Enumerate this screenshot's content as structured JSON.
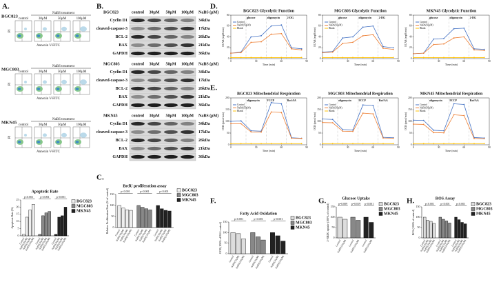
{
  "panels": {
    "A": {
      "label": "A.",
      "rows": [
        "BGC823",
        "MGC803",
        "MKN45"
      ],
      "treatment": "NaBS treatment",
      "doses": [
        "control",
        "30μM",
        "50μM",
        "100μM"
      ],
      "x_axis": "Annexin V-FITC",
      "y_axis": "PI",
      "chart": {
        "type": "bar",
        "title": "Apoptotic Rate",
        "ylabel": "Apoptosis Rate (%)",
        "categories": [
          "Control",
          "NaBS(30μM)",
          "NaBS(50μM)",
          "NaBS(100μM)"
        ],
        "series": [
          {
            "name": "BGC823",
            "color": "#eeeeee",
            "values": [
              1,
              13,
              18,
              22
            ]
          },
          {
            "name": "MGC803",
            "color": "#888888",
            "values": [
              1,
              14,
              16,
              17
            ]
          },
          {
            "name": "MKN45",
            "color": "#222222",
            "values": [
              1,
              13,
              14,
              20
            ]
          }
        ],
        "ylim": [
          0,
          25
        ],
        "yticks": [
          0,
          5,
          10,
          15,
          20,
          25
        ],
        "significance": [
          "p<0.001",
          "p<0.001",
          "p<0.001"
        ]
      }
    },
    "B": {
      "label": "B.",
      "blots": [
        {
          "cell": "BGC823",
          "doses": [
            "control",
            "30μM",
            "50μM",
            "100μM"
          ],
          "unit": "NaBS (μM)",
          "proteins": [
            {
              "name": "Cyclin D1",
              "kda": "34kDa"
            },
            {
              "name": "cleaved-caspase-3",
              "kda": "17kDa"
            },
            {
              "name": "BCL-2",
              "kda": "26kDa"
            },
            {
              "name": "BAX",
              "kda": "21kDa"
            },
            {
              "name": "GAPDH",
              "kda": "36kDa"
            }
          ]
        },
        {
          "cell": "MGC803",
          "doses": [
            "control",
            "30μM",
            "50μM",
            "100μM"
          ],
          "unit": "NaBS (μM)",
          "proteins": [
            {
              "name": "Cyclin D1",
              "kda": "34kDa"
            },
            {
              "name": "cleaved-caspase-3",
              "kda": "17kDa"
            },
            {
              "name": "BCL-2",
              "kda": "26kDa"
            },
            {
              "name": "BAX",
              "kda": "21kDa"
            },
            {
              "name": "GAPDH",
              "kda": "36kDa"
            }
          ]
        },
        {
          "cell": "MKN45",
          "doses": [
            "control",
            "30μM",
            "50μM",
            "100μM"
          ],
          "unit": "NaBS (μM)",
          "proteins": [
            {
              "name": "Cyclin D1",
              "kda": "34kDa"
            },
            {
              "name": "cleaved-caspase-3",
              "kda": "17kDa"
            },
            {
              "name": "BCL-2",
              "kda": "26kDa"
            },
            {
              "name": "BAX",
              "kda": "21kDa"
            },
            {
              "name": "GAPDH",
              "kda": "36kDa"
            }
          ]
        }
      ]
    },
    "C": {
      "label": "C.",
      "chart": {
        "type": "bar",
        "title": "BrdU proliferation assay",
        "ylabel": "Relative Proliferation Rate (% of control)",
        "categories": [
          "Control",
          "NaBS(30μM)",
          "NaBS(50μM)",
          "NaBS(100μM)"
        ],
        "series": [
          {
            "name": "BGC823",
            "color": "#eeeeee",
            "values": [
              100,
              88,
              80,
              78
            ]
          },
          {
            "name": "MGC803",
            "color": "#888888",
            "values": [
              100,
              92,
              85,
              80
            ]
          },
          {
            "name": "MKN45",
            "color": "#222222",
            "values": [
              100,
              85,
              78,
              75
            ]
          }
        ],
        "ylim": [
          0,
          150
        ],
        "yticks": [
          0,
          50,
          100,
          150
        ],
        "significance": [
          "p<0.001",
          "p<0.001",
          "p<0.001"
        ]
      }
    },
    "D": {
      "label": "D.",
      "charts": [
        {
          "type": "line",
          "title": "BGC823 Glycolytic Function",
          "ylabel": "ECAR (mpH/min)",
          "xlabel": "Time (min)",
          "x": [
            0,
            12,
            24,
            36,
            48,
            60,
            72,
            84
          ],
          "xlim": [
            0,
            90
          ],
          "xticks": [
            0,
            30,
            60,
            90
          ],
          "ylim": [
            0,
            80
          ],
          "yticks": [
            0,
            20,
            40,
            60,
            80
          ],
          "series": [
            {
              "name": "Control",
              "color": "#4472c4",
              "values": [
                10,
                12,
                40,
                42,
                60,
                62,
                20,
                18
              ]
            },
            {
              "name": "NaBS(50μM)",
              "color": "#ed7d31",
              "values": [
                10,
                11,
                30,
                31,
                45,
                46,
                18,
                16
              ]
            },
            {
              "name": "Blank",
              "color": "#ffc000",
              "values": [
                2,
                2,
                2,
                2,
                2,
                2,
                2,
                2
              ]
            }
          ],
          "annotations": [
            {
              "text": "glucose",
              "x": 18
            },
            {
              "text": "oligomycin",
              "x": 42
            },
            {
              "text": "2-DG",
              "x": 66
            }
          ]
        },
        {
          "type": "line",
          "title": "MGC803 Glycolytic Function",
          "ylabel": "ECAR (mpH/min)",
          "xlabel": "Time (min)",
          "x": [
            0,
            12,
            24,
            36,
            48,
            60,
            72,
            84
          ],
          "xlim": [
            0,
            90
          ],
          "xticks": [
            0,
            30,
            60,
            90
          ],
          "ylim": [
            0,
            80
          ],
          "yticks": [
            0,
            20,
            40,
            60,
            80
          ],
          "series": [
            {
              "name": "Control",
              "color": "#4472c4",
              "values": [
                12,
                13,
                38,
                40,
                58,
                60,
                22,
                20
              ]
            },
            {
              "name": "NaBS(50μM)",
              "color": "#ed7d31",
              "values": [
                11,
                12,
                28,
                30,
                42,
                44,
                19,
                17
              ]
            },
            {
              "name": "Blank",
              "color": "#ffc000",
              "values": [
                2,
                2,
                2,
                2,
                2,
                2,
                2,
                2
              ]
            }
          ],
          "annotations": [
            {
              "text": "glucose",
              "x": 18
            },
            {
              "text": "oligomycin",
              "x": 42
            },
            {
              "text": "2-DG",
              "x": 66
            }
          ]
        },
        {
          "type": "line",
          "title": "MKN45 Glycolytic Function",
          "ylabel": "ECAR (mpH/min)",
          "xlabel": "Time (min)",
          "x": [
            0,
            12,
            24,
            36,
            48,
            60,
            72,
            84
          ],
          "xlim": [
            0,
            90
          ],
          "xticks": [
            0,
            30,
            60,
            90
          ],
          "ylim": [
            0,
            80
          ],
          "yticks": [
            0,
            20,
            40,
            60,
            80
          ],
          "series": [
            {
              "name": "Control",
              "color": "#4472c4",
              "values": [
                9,
                10,
                36,
                37,
                55,
                56,
                18,
                17
              ]
            },
            {
              "name": "NaBS(50μM)",
              "color": "#ed7d31",
              "values": [
                9,
                10,
                26,
                27,
                38,
                40,
                16,
                15
              ]
            },
            {
              "name": "Blank",
              "color": "#ffc000",
              "values": [
                2,
                2,
                2,
                2,
                2,
                2,
                2,
                2
              ]
            }
          ],
          "annotations": [
            {
              "text": "glucose",
              "x": 18
            },
            {
              "text": "oligomycin",
              "x": 42
            },
            {
              "text": "2-DG",
              "x": 66
            }
          ]
        }
      ]
    },
    "E": {
      "label": "E.",
      "charts": [
        {
          "type": "line",
          "title": "BGC823 Mitochondrial Respiration",
          "ylabel": "OCR (pmol/min)",
          "xlabel": "Time (min)",
          "x": [
            0,
            12,
            24,
            36,
            48,
            60,
            72,
            84
          ],
          "xlim": [
            0,
            90
          ],
          "xticks": [
            0,
            30,
            60,
            90
          ],
          "ylim": [
            0,
            200
          ],
          "yticks": [
            0,
            50,
            100,
            150,
            200
          ],
          "series": [
            {
              "name": "Control",
              "color": "#4472c4",
              "values": [
                100,
                102,
                60,
                58,
                180,
                175,
                30,
                28
              ]
            },
            {
              "name": "NaBS(50μM)",
              "color": "#ed7d31",
              "values": [
                90,
                90,
                55,
                54,
                140,
                138,
                28,
                27
              ]
            },
            {
              "name": "Blank",
              "color": "#ffc000",
              "values": [
                5,
                5,
                5,
                5,
                5,
                5,
                5,
                5
              ]
            }
          ],
          "annotations": [
            {
              "text": "oligomycin",
              "x": 18
            },
            {
              "text": "FCCP",
              "x": 42
            },
            {
              "text": "Rot/AA",
              "x": 66
            }
          ]
        },
        {
          "type": "line",
          "title": "MGC803 Mitochondrial Respiration",
          "ylabel": "OCR (pmol/min)",
          "xlabel": "Time (min)",
          "x": [
            0,
            12,
            24,
            36,
            48,
            60,
            72,
            84
          ],
          "xlim": [
            0,
            90
          ],
          "xticks": [
            0,
            30,
            60,
            90
          ],
          "ylim": [
            0,
            200
          ],
          "yticks": [
            0,
            50,
            100,
            150,
            200
          ],
          "series": [
            {
              "name": "Control",
              "color": "#4472c4",
              "values": [
                110,
                108,
                65,
                63,
                170,
                168,
                32,
                30
              ]
            },
            {
              "name": "NaBS(50μM)",
              "color": "#ed7d31",
              "values": [
                95,
                94,
                58,
                57,
                135,
                132,
                29,
                28
              ]
            },
            {
              "name": "Blank",
              "color": "#ffc000",
              "values": [
                5,
                5,
                5,
                5,
                5,
                5,
                5,
                5
              ]
            }
          ],
          "annotations": [
            {
              "text": "oligomycin",
              "x": 18
            },
            {
              "text": "FCCP",
              "x": 42
            },
            {
              "text": "Rot/AA",
              "x": 66
            }
          ]
        },
        {
          "type": "line",
          "title": "MKN45 Mitochondrial Respiration",
          "ylabel": "OCR (pmol/min)",
          "xlabel": "Time (min)",
          "x": [
            0,
            12,
            24,
            36,
            48,
            60,
            72,
            84
          ],
          "xlim": [
            0,
            90
          ],
          "xticks": [
            0,
            30,
            60,
            90
          ],
          "ylim": [
            0,
            200
          ],
          "yticks": [
            0,
            50,
            100,
            150,
            200
          ],
          "series": [
            {
              "name": "Control",
              "color": "#4472c4",
              "values": [
                105,
                104,
                62,
                60,
                175,
                172,
                31,
                29
              ]
            },
            {
              "name": "NaBS(50μM)",
              "color": "#ed7d31",
              "values": [
                88,
                87,
                52,
                51,
                128,
                125,
                27,
                26
              ]
            },
            {
              "name": "Blank",
              "color": "#ffc000",
              "values": [
                5,
                5,
                5,
                5,
                5,
                5,
                5,
                5
              ]
            }
          ],
          "annotations": [
            {
              "text": "oligomycin",
              "x": 18
            },
            {
              "text": "FCCP",
              "x": 42
            },
            {
              "text": "Rot/AA",
              "x": 66
            }
          ]
        }
      ]
    },
    "F": {
      "label": "F.",
      "chart": {
        "type": "bar",
        "title": "Fatty Acid Oxidation",
        "ylabel": "OCR (100% of BSA control)",
        "categories": [
          "Control",
          "NaBS(50μM)",
          "NaBS(100μM)"
        ],
        "series": [
          {
            "name": "BGC823",
            "color": "#dddddd",
            "values": [
              100,
              95,
              70
            ]
          },
          {
            "name": "MGC803",
            "color": "#888888",
            "values": [
              100,
              80,
              65
            ]
          },
          {
            "name": "MKN45",
            "color": "#222222",
            "values": [
              100,
              85,
              60
            ]
          }
        ],
        "ylim": [
          0,
          150
        ],
        "yticks": [
          0,
          50,
          100,
          150
        ],
        "significance": [
          "p<0.001",
          "p<0.001",
          "p<0.001"
        ]
      }
    },
    "G": {
      "label": "G.",
      "chart": {
        "type": "bar",
        "title": "Glucose Uptake",
        "ylabel": "2-NBDG uptake (100% of control)",
        "categories": [
          "Control",
          "NaBS(100μM)"
        ],
        "series": [
          {
            "name": "BGC823",
            "color": "#dddddd",
            "values": [
              100,
              90
            ]
          },
          {
            "name": "MGC803",
            "color": "#888888",
            "values": [
              100,
              85
            ]
          },
          {
            "name": "MKN45",
            "color": "#222222",
            "values": [
              100,
              75
            ]
          }
        ],
        "ylim": [
          0,
          150
        ],
        "yticks": [
          0,
          50,
          100,
          150
        ],
        "significance": [
          "p=0.009",
          "p=0.019",
          "p<0.001"
        ]
      }
    },
    "H": {
      "label": "H.",
      "chart": {
        "type": "bar",
        "title": "ROS Assay",
        "ylabel": "ROS (100% of control)",
        "categories": [
          "Control",
          "NaBS(30μM)",
          "NaBS(50μM)",
          "NaBS(100μM)"
        ],
        "series": [
          {
            "name": "BGC823",
            "color": "#dddddd",
            "values": [
              100,
              85,
              80,
              70
            ]
          },
          {
            "name": "MGC803",
            "color": "#888888",
            "values": [
              100,
              90,
              82,
              72
            ]
          },
          {
            "name": "MKN45",
            "color": "#222222",
            "values": [
              100,
              88,
              75,
              68
            ]
          }
        ],
        "ylim": [
          0,
          150
        ],
        "yticks": [
          0,
          50,
          100,
          150
        ],
        "significance": [
          "p<0.001",
          "p<0.001",
          "p<0.001"
        ]
      }
    }
  }
}
